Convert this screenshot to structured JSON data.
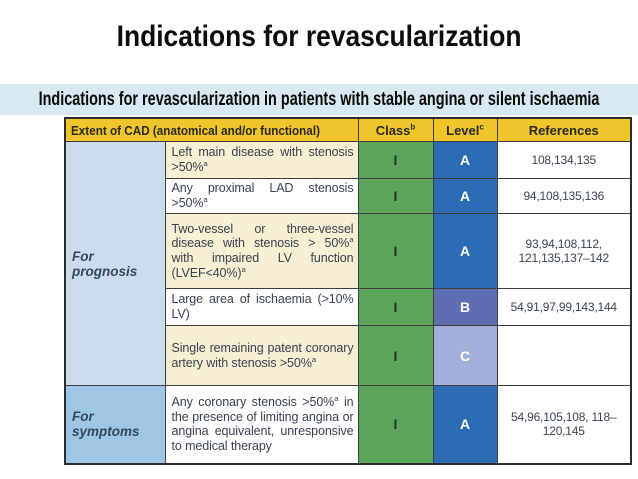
{
  "slide": {
    "title": "Indications for revascularization",
    "banner": "Indications for revascularization in patients with stable angina or silent ischaemia"
  },
  "table": {
    "headers": {
      "extent": "Extent of CAD (anatomical and/or functional)",
      "class": "Class^b",
      "level": "Level^c",
      "references": "References"
    },
    "groups": [
      {
        "label": "For prognosis"
      },
      {
        "label": "For symptoms"
      }
    ],
    "rows": [
      {
        "indication": "Left main disease with stenosis >50%^a",
        "class": "I",
        "level": "A",
        "references": "108,134,135"
      },
      {
        "indication": "Any proximal LAD stenosis >50%^a",
        "class": "I",
        "level": "A",
        "references": "94,108,135,136"
      },
      {
        "indication": "Two-vessel or three-vessel disease with stenosis > 50%^a with impaired LV function (LVEF<40%)^a",
        "class": "I",
        "level": "A",
        "references": "93,94,108,112, 121,135,137–142"
      },
      {
        "indication": "Large area of ischaemia (>10% LV)",
        "class": "I",
        "level": "B",
        "references": "54,91,97,99,143,144"
      },
      {
        "indication": "Single remaining patent coronary artery with stenosis >50%^a",
        "class": "I",
        "level": "C",
        "references": ""
      },
      {
        "indication": "Any coronary stenosis >50%^a in the presence of limiting angina or angina equivalent, unresponsive to medical therapy",
        "class": "I",
        "level": "A",
        "references": "54,96,105,108, 118–120,145"
      }
    ]
  },
  "colors": {
    "banner_bg": "#D8E9F2",
    "header_bg": "#F0C52C",
    "class_green": "#5CA55C",
    "level_a": "#2B6CB4",
    "level_b": "#5F6DB2",
    "level_c": "#A3AFD8",
    "cream_row": "#F6EFD3",
    "prognosis_bg": "#CBDCEC",
    "symptoms_bg": "#9FC6E4",
    "desc_text": "#3A4250",
    "refs_text": "#3A4454",
    "group_text": "#34485E"
  }
}
